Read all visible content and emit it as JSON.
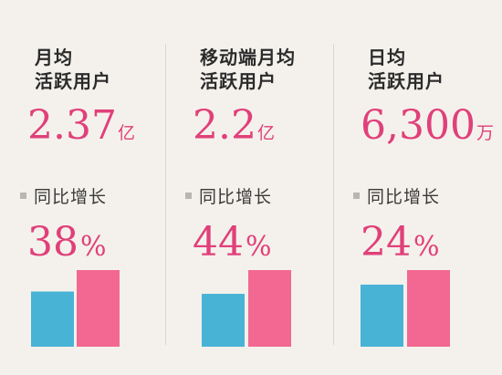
{
  "colors": {
    "accent": "#e0407a",
    "bar_prev": "#49b3d6",
    "bar_curr": "#f26892",
    "background": "#f4f1ec"
  },
  "yoy_label": "同比增长",
  "panels": [
    {
      "heading_line1": "月均",
      "heading_line2": "活跃用户",
      "value": "2.37",
      "unit": "亿",
      "yoy_value": "38",
      "yoy_unit": "%"
    },
    {
      "heading_line1": "移动端月均",
      "heading_line2": "活跃用户",
      "value": "2.2",
      "unit": "亿",
      "yoy_value": "44",
      "yoy_unit": "%"
    },
    {
      "heading_line1": "日均",
      "heading_line2": "活跃用户",
      "value": "6,300",
      "unit": "万",
      "yoy_value": "24",
      "yoy_unit": "%"
    }
  ],
  "chart_data": [
    {
      "type": "bar",
      "metric": "月均活跃用户",
      "values": [
        0.72,
        1.0
      ],
      "yoy_percent": 38
    },
    {
      "type": "bar",
      "metric": "移动端月均活跃用户",
      "values": [
        0.69,
        1.0
      ],
      "yoy_percent": 44
    },
    {
      "type": "bar",
      "metric": "日均活跃用户",
      "values": [
        0.81,
        1.0
      ],
      "yoy_percent": 24
    }
  ]
}
